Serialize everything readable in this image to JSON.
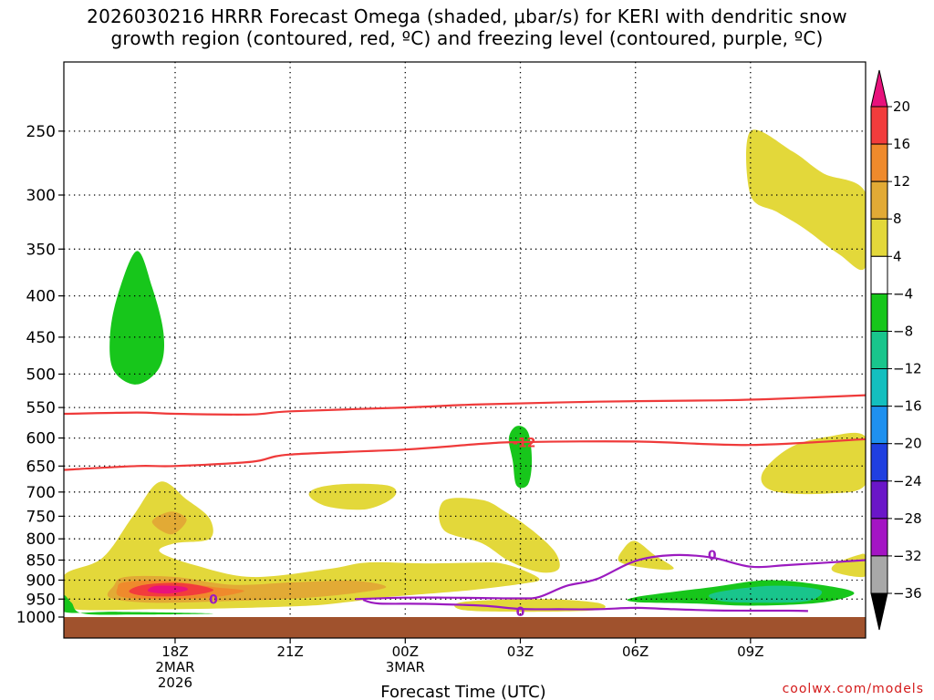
{
  "title": {
    "line1": "2026030216 HRRR Forecast Omega (shaded, μbar/s) for KERI with dendritic snow",
    "line2": "growth region (contoured, red, ºC) and freezing level (contoured, purple, ºC)"
  },
  "chart_data": {
    "type": "time-height cross section",
    "xlabel": "Forecast Time (UTC)",
    "ylabel": "",
    "y_axis": "pressure (hPa), inverted log scale",
    "ylim": [
      1000,
      200
    ],
    "xlim_hours": [
      -2.9,
      18.0
    ],
    "y_ticks": [
      250,
      300,
      350,
      400,
      450,
      500,
      550,
      600,
      650,
      700,
      750,
      800,
      850,
      900,
      950,
      1000
    ],
    "x_ticks": [
      {
        "hour": 0,
        "label": "18Z",
        "sub1": "2MAR",
        "sub2": "2026"
      },
      {
        "hour": 3,
        "label": "21Z",
        "sub1": "",
        "sub2": ""
      },
      {
        "hour": 6,
        "label": "00Z",
        "sub1": "3MAR",
        "sub2": ""
      },
      {
        "hour": 9,
        "label": "03Z",
        "sub1": "",
        "sub2": ""
      },
      {
        "hour": 12,
        "label": "06Z",
        "sub1": "",
        "sub2": ""
      },
      {
        "hour": 15,
        "label": "09Z",
        "sub1": "",
        "sub2": ""
      }
    ],
    "grid": "dotted",
    "colorbar": {
      "units": "μbar/s",
      "levels": [
        20,
        16,
        12,
        8,
        4,
        -4,
        -8,
        -12,
        -16,
        -20,
        -24,
        -28,
        -32,
        -36
      ],
      "colors": {
        "above_20": "#e8127c",
        "16_20": "#f23c3c",
        "12_16": "#ef8a2c",
        "8_12": "#e2aa35",
        "4_8": "#e3d83a",
        "-4_4": "#ffffff",
        "-8_-4": "#17c61b",
        "-12_-8": "#19c58c",
        "-16_-12": "#13bfbf",
        "-20_-16": "#1e90ef",
        "-24_-20": "#1f3fe0",
        "-28_-24": "#6a16c8",
        "-32_-28": "#a414c4",
        "-36_-32": "#a8a8a8",
        "below_-36": "#000000"
      }
    },
    "contours": [
      {
        "name": "dendritic snow growth upper bound",
        "color": "#ef3a3a",
        "value_c": -18,
        "points": [
          [
            -2.9,
            560
          ],
          [
            -1.0,
            558
          ],
          [
            0.0,
            560
          ],
          [
            2.0,
            561
          ],
          [
            3.0,
            556
          ],
          [
            6.0,
            550
          ],
          [
            8.0,
            545
          ],
          [
            11.0,
            541
          ],
          [
            14.0,
            539
          ],
          [
            15.5,
            537
          ],
          [
            18.0,
            531
          ]
        ]
      },
      {
        "name": "dendritic snow growth lower bound",
        "color": "#ef3a3a",
        "value_c": -12,
        "label": "-12",
        "points": [
          [
            -2.9,
            657
          ],
          [
            -1.0,
            650
          ],
          [
            0.0,
            650
          ],
          [
            2.0,
            642
          ],
          [
            3.0,
            629
          ],
          [
            6.0,
            620
          ],
          [
            8.0,
            610
          ],
          [
            9.0,
            607
          ],
          [
            12.0,
            606
          ],
          [
            15.0,
            612
          ],
          [
            18.0,
            602
          ]
        ]
      },
      {
        "name": "freezing level",
        "color": "#9b1bc0",
        "value_c": 0,
        "label": "0",
        "points": [
          [
            4.7,
            950
          ],
          [
            6.0,
            946
          ],
          [
            7.0,
            946
          ],
          [
            8.0,
            947
          ],
          [
            9.0,
            948
          ],
          [
            9.5,
            944
          ],
          [
            10.2,
            915
          ],
          [
            11.0,
            897
          ],
          [
            12.0,
            852
          ],
          [
            13.0,
            838
          ],
          [
            14.0,
            844
          ],
          [
            15.0,
            866
          ],
          [
            16.0,
            862
          ],
          [
            18.0,
            850
          ]
        ]
      },
      {
        "name": "freezing level lower branch",
        "color": "#9b1bc0",
        "value_c": 0,
        "label": "0",
        "points": [
          [
            4.9,
            952
          ],
          [
            5.3,
            962
          ],
          [
            6.5,
            963
          ],
          [
            8.0,
            968
          ],
          [
            9.0,
            977
          ],
          [
            10.0,
            978
          ],
          [
            11.0,
            978
          ],
          [
            12.0,
            974
          ],
          [
            13.0,
            978
          ],
          [
            14.0,
            981
          ],
          [
            15.0,
            982
          ],
          [
            16.0,
            982
          ],
          [
            16.5,
            983
          ]
        ]
      }
    ],
    "contour_labels": [
      {
        "text": "-12",
        "hour": 9.1,
        "p": 608,
        "color": "#ef3a3a"
      },
      {
        "text": "0",
        "hour": 1.0,
        "p": 950,
        "color": "#9b1bc0"
      },
      {
        "text": "0",
        "hour": 9.0,
        "p": 985,
        "color": "#9b1bc0"
      },
      {
        "text": "0",
        "hour": 14.0,
        "p": 838,
        "color": "#9b1bc0"
      }
    ],
    "shaded_regions": [
      {
        "band": "-8_-4",
        "color": "#17c61b",
        "desc": "upper-level sinking core near 18Z",
        "points": [
          [
            -1.0,
            352
          ],
          [
            -0.6,
            390
          ],
          [
            -0.3,
            445
          ],
          [
            -0.4,
            490
          ],
          [
            -1.0,
            515
          ],
          [
            -1.6,
            495
          ],
          [
            -1.7,
            450
          ],
          [
            -1.5,
            400
          ]
        ]
      },
      {
        "band": "4_8",
        "color": "#e3d83a",
        "desc": "upper-right rising area near 09Z",
        "points": [
          [
            15.0,
            250
          ],
          [
            16.1,
            265
          ],
          [
            16.9,
            282
          ],
          [
            18.0,
            298
          ],
          [
            18.0,
            368
          ],
          [
            17.3,
            355
          ],
          [
            16.4,
            330
          ],
          [
            15.7,
            315
          ],
          [
            15.0,
            300
          ]
        ]
      },
      {
        "band": "4_8",
        "color": "#e3d83a",
        "desc": "low-level rising region 17Z-23Z",
        "points": [
          [
            -2.9,
            888
          ],
          [
            -1.9,
            845
          ],
          [
            -1.1,
            750
          ],
          [
            -0.4,
            680
          ],
          [
            0.3,
            715
          ],
          [
            0.9,
            755
          ],
          [
            0.9,
            800
          ],
          [
            0.0,
            810
          ],
          [
            -0.4,
            830
          ],
          [
            0.5,
            862
          ],
          [
            2.0,
            892
          ],
          [
            4.0,
            872
          ],
          [
            5.0,
            856
          ],
          [
            6.5,
            858
          ],
          [
            8.0,
            856
          ],
          [
            8.5,
            858
          ],
          [
            9.0,
            872
          ],
          [
            9.5,
            898
          ],
          [
            9.0,
            910
          ],
          [
            7.5,
            928
          ],
          [
            5.5,
            945
          ],
          [
            4.5,
            958
          ],
          [
            3.5,
            968
          ],
          [
            1.5,
            975
          ],
          [
            -0.5,
            978
          ],
          [
            -2.9,
            972
          ]
        ]
      },
      {
        "band": "8_12",
        "color": "#e2aa35",
        "desc": "orange-gold core",
        "points": [
          [
            -1.3,
            892
          ],
          [
            0.0,
            892
          ],
          [
            1.5,
            912
          ],
          [
            3.2,
            905
          ],
          [
            4.7,
            902
          ],
          [
            5.5,
            918
          ],
          [
            4.6,
            935
          ],
          [
            3.2,
            948
          ],
          [
            1.5,
            955
          ],
          [
            -0.6,
            960
          ],
          [
            -1.7,
            946
          ],
          [
            -1.6,
            915
          ]
        ]
      },
      {
        "band": "12_16",
        "color": "#ef8a2c",
        "desc": "orange core",
        "points": [
          [
            -1.3,
            905
          ],
          [
            -0.2,
            902
          ],
          [
            1.0,
            918
          ],
          [
            1.8,
            928
          ],
          [
            1.0,
            945
          ],
          [
            -0.3,
            950
          ],
          [
            -1.4,
            944
          ],
          [
            -1.5,
            920
          ]
        ]
      },
      {
        "band": "16_20",
        "color": "#f23c3c",
        "desc": "red core",
        "points": [
          [
            -0.8,
            912
          ],
          [
            0.2,
            908
          ],
          [
            1.0,
            925
          ],
          [
            0.4,
            940
          ],
          [
            -0.7,
            942
          ],
          [
            -1.2,
            930
          ]
        ]
      },
      {
        "band": "above_20",
        "color": "#e8127c",
        "desc": "magenta maximum",
        "points": [
          [
            -0.5,
            915
          ],
          [
            0.2,
            917
          ],
          [
            0.3,
            927
          ],
          [
            -0.2,
            935
          ],
          [
            -0.7,
            929
          ]
        ]
      },
      {
        "band": "8_12",
        "color": "#e2aa35",
        "desc": "small mid-level core near 18Z",
        "points": [
          [
            -0.1,
            740
          ],
          [
            0.3,
            758
          ],
          [
            -0.1,
            790
          ],
          [
            -0.6,
            762
          ]
        ]
      },
      {
        "band": "4_8",
        "color": "#e3d83a",
        "desc": "mid-level patch near 23Z",
        "points": [
          [
            3.7,
            692
          ],
          [
            4.5,
            684
          ],
          [
            5.6,
            688
          ],
          [
            5.7,
            710
          ],
          [
            5.0,
            735
          ],
          [
            4.0,
            730
          ],
          [
            3.5,
            708
          ]
        ]
      },
      {
        "band": "4_8",
        "color": "#e3d83a",
        "desc": "patch near 01Z",
        "points": [
          [
            7.0,
            718
          ],
          [
            8.0,
            716
          ],
          [
            8.6,
            740
          ],
          [
            9.3,
            780
          ],
          [
            9.9,
            830
          ],
          [
            10.0,
            872
          ],
          [
            9.5,
            880
          ],
          [
            8.7,
            852
          ],
          [
            8.0,
            810
          ],
          [
            7.0,
            780
          ]
        ]
      },
      {
        "band": "-8_-4",
        "color": "#17c61b",
        "desc": "narrow sinking near 03Z",
        "points": [
          [
            8.9,
            580
          ],
          [
            9.2,
            590
          ],
          [
            9.3,
            640
          ],
          [
            9.2,
            685
          ],
          [
            8.9,
            687
          ],
          [
            8.8,
            640
          ],
          [
            8.7,
            600
          ]
        ]
      },
      {
        "band": "4_8",
        "color": "#e3d83a",
        "desc": "patch near 06Z",
        "points": [
          [
            12.0,
            805
          ],
          [
            12.5,
            838
          ],
          [
            13.0,
            870
          ],
          [
            12.5,
            872
          ],
          [
            11.6,
            855
          ],
          [
            11.7,
            822
          ]
        ]
      },
      {
        "band": "4_8",
        "color": "#e3d83a",
        "desc": "right edge mid patch near 09Z",
        "points": [
          [
            16.0,
            618
          ],
          [
            17.0,
            598
          ],
          [
            18.0,
            598
          ],
          [
            18.0,
            685
          ],
          [
            17.0,
            703
          ],
          [
            15.6,
            698
          ],
          [
            15.3,
            665
          ]
        ]
      },
      {
        "band": "4_8",
        "color": "#e3d83a",
        "desc": "right edge low patch",
        "points": [
          [
            17.8,
            838
          ],
          [
            18.0,
            840
          ],
          [
            18.0,
            890
          ],
          [
            17.2,
            880
          ],
          [
            17.2,
            860
          ]
        ]
      },
      {
        "band": "4_8",
        "color": "#e3d83a",
        "desc": "near-surface patch 01Z-05Z",
        "points": [
          [
            7.5,
            958
          ],
          [
            9.5,
            950
          ],
          [
            11.0,
            960
          ],
          [
            11.0,
            980
          ],
          [
            9.0,
            985
          ],
          [
            7.5,
            980
          ]
        ]
      },
      {
        "band": "-8_-4",
        "color": "#17c61b",
        "desc": "near-surface green 06Z-09Z",
        "points": [
          [
            12.0,
            945
          ],
          [
            14.0,
            918
          ],
          [
            15.5,
            900
          ],
          [
            17.0,
            915
          ],
          [
            17.7,
            935
          ],
          [
            16.8,
            960
          ],
          [
            15.0,
            968
          ],
          [
            13.5,
            962
          ],
          [
            12.0,
            958
          ]
        ]
      },
      {
        "band": "-12_-8",
        "color": "#19c58c",
        "desc": "sea-green core",
        "points": [
          [
            14.0,
            935
          ],
          [
            15.5,
            915
          ],
          [
            16.8,
            925
          ],
          [
            16.5,
            955
          ],
          [
            15.2,
            960
          ],
          [
            14.2,
            955
          ]
        ]
      },
      {
        "band": "-8_-4",
        "color": "#17c61b",
        "desc": "left edge near-surface green",
        "points": [
          [
            -2.9,
            940
          ],
          [
            -2.7,
            960
          ],
          [
            -2.4,
            990
          ],
          [
            -1.0,
            993
          ],
          [
            1.0,
            990
          ],
          [
            -1.5,
            985
          ],
          [
            -2.9,
            985
          ]
        ]
      }
    ],
    "terrain": {
      "color": "#a0522d",
      "pressure_top": 1000
    }
  },
  "credit": "coolwx.com/models"
}
